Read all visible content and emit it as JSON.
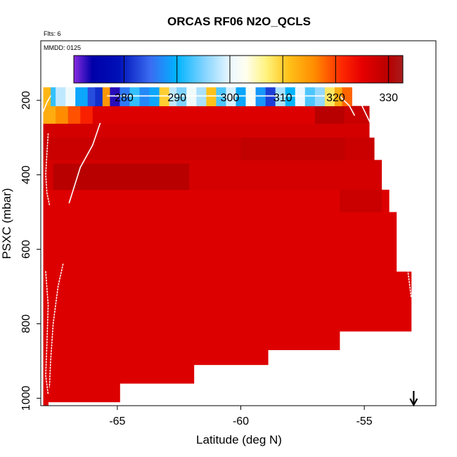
{
  "chart_data": {
    "type": "heatmap",
    "title": "ORCAS RF06 N2O_QCLS",
    "flights_note": "Flts: 6",
    "date_note": "MMDD: 0125",
    "xlabel": "Latitude (deg N)",
    "ylabel": "PSXC (mbar)",
    "xlim": [
      -68.1,
      -52.1
    ],
    "ylim": [
      1020,
      40
    ],
    "xticks": [
      -65,
      -60,
      -55
    ],
    "xtick_labels": [
      "-65",
      "-60",
      "-55"
    ],
    "yticks": [
      200,
      400,
      600,
      800,
      1000
    ],
    "ytick_labels": [
      "200",
      "400",
      "600",
      "800",
      "1000"
    ],
    "colorbar": {
      "range": [
        270.5,
        332.7
      ],
      "ticks": [
        280,
        290,
        300,
        310,
        320,
        330
      ],
      "tick_labels": [
        "280",
        "290",
        "300",
        "310",
        "320",
        "330"
      ],
      "stops": [
        {
          "v": 270.5,
          "c": "#8a2be2"
        },
        {
          "v": 274,
          "c": "#0000a8"
        },
        {
          "v": 279,
          "c": "#0010b8"
        },
        {
          "v": 285,
          "c": "#3a6cf2"
        },
        {
          "v": 290,
          "c": "#00b4ff"
        },
        {
          "v": 295,
          "c": "#7fd2ff"
        },
        {
          "v": 300,
          "c": "#eaf7ff"
        },
        {
          "v": 303,
          "c": "#fffff0"
        },
        {
          "v": 307,
          "c": "#fff27a"
        },
        {
          "v": 311,
          "c": "#ffc21a"
        },
        {
          "v": 316,
          "c": "#ff8c00"
        },
        {
          "v": 321,
          "c": "#ff2a00"
        },
        {
          "v": 325,
          "c": "#e60000"
        },
        {
          "v": 330,
          "c": "#b80000"
        },
        {
          "v": 332.7,
          "c": "#a81c1c"
        }
      ]
    },
    "upper_band_segments": [
      {
        "x0": -68.0,
        "x1": -67.7,
        "p0": 165,
        "p1": 215,
        "v": 312
      },
      {
        "x0": -67.7,
        "x1": -67.5,
        "p0": 165,
        "p1": 215,
        "v": 292
      },
      {
        "x0": -67.5,
        "x1": -67.1,
        "p0": 165,
        "p1": 215,
        "v": 298
      },
      {
        "x0": -67.1,
        "x1": -66.7,
        "p0": 165,
        "p1": 215,
        "v": 301
      },
      {
        "x0": -66.7,
        "x1": -66.2,
        "p0": 165,
        "p1": 215,
        "v": 289
      },
      {
        "x0": -66.2,
        "x1": -65.9,
        "p0": 165,
        "p1": 215,
        "v": 283
      },
      {
        "x0": -65.9,
        "x1": -65.6,
        "p0": 165,
        "p1": 215,
        "v": 281
      },
      {
        "x0": -65.6,
        "x1": -65.3,
        "p0": 165,
        "p1": 215,
        "v": 315
      },
      {
        "x0": -65.3,
        "x1": -64.9,
        "p0": 165,
        "p1": 215,
        "v": 273
      },
      {
        "x0": -64.9,
        "x1": -64.5,
        "p0": 165,
        "p1": 215,
        "v": 286
      },
      {
        "x0": -64.5,
        "x1": -64.1,
        "p0": 165,
        "p1": 215,
        "v": 292
      },
      {
        "x0": -64.1,
        "x1": -63.7,
        "p0": 165,
        "p1": 215,
        "v": 287
      },
      {
        "x0": -63.7,
        "x1": -63.3,
        "p0": 165,
        "p1": 215,
        "v": 289
      },
      {
        "x0": -63.3,
        "x1": -62.9,
        "p0": 165,
        "p1": 215,
        "v": 310
      },
      {
        "x0": -62.9,
        "x1": -62.6,
        "p0": 165,
        "p1": 215,
        "v": 298
      },
      {
        "x0": -62.6,
        "x1": -62.2,
        "p0": 165,
        "p1": 215,
        "v": 295
      },
      {
        "x0": -62.2,
        "x1": -61.8,
        "p0": 165,
        "p1": 215,
        "v": 301
      },
      {
        "x0": -61.8,
        "x1": -61.4,
        "p0": 165,
        "p1": 215,
        "v": 297
      },
      {
        "x0": -61.4,
        "x1": -61.0,
        "p0": 165,
        "p1": 215,
        "v": 311
      },
      {
        "x0": -61.0,
        "x1": -60.6,
        "p0": 165,
        "p1": 215,
        "v": 293
      },
      {
        "x0": -60.6,
        "x1": -60.2,
        "p0": 165,
        "p1": 215,
        "v": 299
      },
      {
        "x0": -60.2,
        "x1": -59.8,
        "p0": 165,
        "p1": 215,
        "v": 289
      },
      {
        "x0": -59.8,
        "x1": -59.4,
        "p0": 165,
        "p1": 215,
        "v": 302
      },
      {
        "x0": -59.4,
        "x1": -59.0,
        "p0": 165,
        "p1": 215,
        "v": 288
      },
      {
        "x0": -59.0,
        "x1": -58.6,
        "p0": 165,
        "p1": 215,
        "v": 282
      },
      {
        "x0": -58.6,
        "x1": -58.2,
        "p0": 165,
        "p1": 215,
        "v": 297
      },
      {
        "x0": -58.2,
        "x1": -57.8,
        "p0": 165,
        "p1": 215,
        "v": 290
      },
      {
        "x0": -57.8,
        "x1": -57.4,
        "p0": 165,
        "p1": 215,
        "v": 300
      },
      {
        "x0": -57.4,
        "x1": -57.0,
        "p0": 165,
        "p1": 215,
        "v": 293
      },
      {
        "x0": -57.0,
        "x1": -56.6,
        "p0": 165,
        "p1": 215,
        "v": 296
      },
      {
        "x0": -56.6,
        "x1": -56.2,
        "p0": 165,
        "p1": 215,
        "v": 308
      },
      {
        "x0": -56.2,
        "x1": -55.9,
        "p0": 165,
        "p1": 215,
        "v": 313
      },
      {
        "x0": -55.9,
        "x1": -55.5,
        "p0": 165,
        "p1": 215,
        "v": 318
      }
    ],
    "mid_band_segments": [
      {
        "x0": -68.0,
        "x1": -67.5,
        "p0": 215,
        "p1": 262,
        "v": 313
      },
      {
        "x0": -67.5,
        "x1": -67.0,
        "p0": 215,
        "p1": 262,
        "v": 316
      },
      {
        "x0": -67.0,
        "x1": -66.5,
        "p0": 215,
        "p1": 262,
        "v": 319
      },
      {
        "x0": -66.5,
        "x1": -66.0,
        "p0": 215,
        "p1": 262,
        "v": 322
      },
      {
        "x0": -66.0,
        "x1": -57.0,
        "p0": 215,
        "p1": 262,
        "v": 326
      },
      {
        "x0": -57.0,
        "x1": -55.8,
        "p0": 215,
        "p1": 262,
        "v": 330
      },
      {
        "x0": -55.8,
        "x1": -54.8,
        "p0": 215,
        "p1": 262,
        "v": 328
      }
    ],
    "main_blocks": [
      {
        "x0": -68.0,
        "x1": -54.8,
        "p0": 262,
        "p1": 300,
        "v": 327
      },
      {
        "x0": -68.0,
        "x1": -54.6,
        "p0": 300,
        "p1": 360,
        "v": 328
      },
      {
        "x0": -68.0,
        "x1": -54.3,
        "p0": 360,
        "p1": 440,
        "v": 327
      },
      {
        "x0": -68.0,
        "x1": -54.0,
        "p0": 440,
        "p1": 500,
        "v": 326
      },
      {
        "x0": -68.0,
        "x1": -53.7,
        "p0": 500,
        "p1": 660,
        "v": 326
      },
      {
        "x0": -68.0,
        "x1": -53.1,
        "p0": 660,
        "p1": 820,
        "v": 326
      },
      {
        "x0": -68.0,
        "x1": -56.0,
        "p0": 820,
        "p1": 870,
        "v": 326
      },
      {
        "x0": -68.0,
        "x1": -58.9,
        "p0": 870,
        "p1": 910,
        "v": 326
      },
      {
        "x0": -68.0,
        "x1": -61.9,
        "p0": 910,
        "p1": 960,
        "v": 326
      },
      {
        "x0": -68.0,
        "x1": -64.9,
        "p0": 960,
        "p1": 1010,
        "v": 326
      },
      {
        "x0": -68.0,
        "x1": -67.8,
        "p0": 1010,
        "p1": 1020,
        "v": 326
      }
    ],
    "darker_patches": [
      {
        "x0": -67.6,
        "x1": -62.1,
        "p0": 370,
        "p1": 440,
        "v": 330
      },
      {
        "x0": -60.0,
        "x1": -55.8,
        "p0": 300,
        "p1": 360,
        "v": 329
      },
      {
        "x0": -56.0,
        "x1": -54.3,
        "p0": 440,
        "p1": 500,
        "v": 328
      }
    ],
    "flight_tracks": [
      {
        "name": "descent-west-upper",
        "points": [
          [
            -68.0,
            230
          ],
          [
            -67.85,
            205
          ],
          [
            -67.7,
            188
          ]
        ]
      },
      {
        "name": "ascent-west",
        "points": [
          [
            -66.95,
            475
          ],
          [
            -66.5,
            380
          ],
          [
            -66.0,
            320
          ],
          [
            -65.7,
            262
          ]
        ]
      },
      {
        "name": "profile-west-a",
        "points": [
          [
            -67.8,
            290
          ],
          [
            -67.85,
            340
          ],
          [
            -67.9,
            400
          ],
          [
            -67.85,
            450
          ],
          [
            -67.75,
            480
          ]
        ]
      },
      {
        "name": "profile-west-b",
        "points": [
          [
            -67.9,
            660
          ],
          [
            -67.8,
            750
          ],
          [
            -67.85,
            850
          ],
          [
            -67.9,
            940
          ],
          [
            -67.8,
            990
          ]
        ]
      },
      {
        "name": "profile-west-c",
        "points": [
          [
            -67.2,
            640
          ],
          [
            -67.4,
            700
          ],
          [
            -67.6,
            800
          ],
          [
            -67.7,
            900
          ],
          [
            -67.75,
            970
          ]
        ]
      },
      {
        "name": "cruise-line",
        "points": [
          [
            -65.4,
            188
          ],
          [
            -61.0,
            188
          ],
          [
            -56.6,
            188
          ]
        ]
      },
      {
        "name": "descent-east-upper",
        "points": [
          [
            -56.0,
            188
          ],
          [
            -55.6,
            215
          ],
          [
            -55.4,
            240
          ]
        ]
      },
      {
        "name": "descent-east",
        "points": [
          [
            -55.2,
            200
          ],
          [
            -54.8,
            255
          ],
          [
            -54.4,
            310
          ],
          [
            -54.2,
            355
          ]
        ]
      },
      {
        "name": "profile-east",
        "points": [
          [
            -53.6,
            500
          ],
          [
            -53.4,
            570
          ],
          [
            -53.25,
            650
          ],
          [
            -53.1,
            730
          ]
        ]
      }
    ],
    "marker_arrow_lat": -53.0
  }
}
